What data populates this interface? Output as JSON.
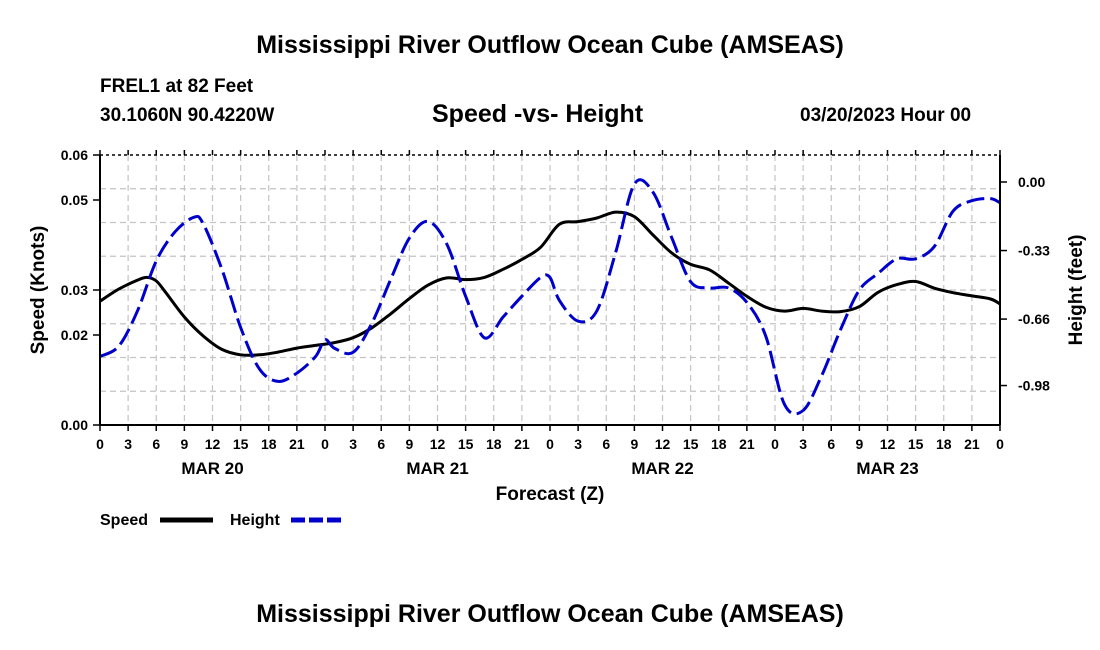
{
  "header": {
    "title": "Mississippi River Outflow Ocean Cube (AMSEAS)",
    "station": "FREL1 at 82 Feet",
    "coords": "30.1060N  90.4220W",
    "subtitle": "Speed -vs- Height",
    "datetime": "03/20/2023 Hour 00"
  },
  "footer": {
    "title": "Mississippi River Outflow Ocean Cube (AMSEAS)"
  },
  "chart_data": {
    "type": "line",
    "xlabel": "Forecast (Z)",
    "x_unit": "hours from 03/20/2023 00Z",
    "xlim": [
      0,
      96
    ],
    "x_tick_step": 3,
    "x_tick_labels": [
      "0",
      "3",
      "6",
      "9",
      "12",
      "15",
      "18",
      "21",
      "0",
      "3",
      "6",
      "9",
      "12",
      "15",
      "18",
      "21",
      "0",
      "3",
      "6",
      "9",
      "12",
      "15",
      "18",
      "21",
      "0",
      "3",
      "6",
      "9",
      "12",
      "15",
      "18",
      "21",
      "0"
    ],
    "date_labels": [
      {
        "label": "MAR 20",
        "hour": 12
      },
      {
        "label": "MAR 21",
        "hour": 36
      },
      {
        "label": "MAR 22",
        "hour": 60
      },
      {
        "label": "MAR 23",
        "hour": 84
      }
    ],
    "left_axis": {
      "label": "Speed (Knots)",
      "ylim": [
        0,
        0.06
      ],
      "ticks": [
        0.0,
        0.02,
        0.03,
        0.05,
        0.06
      ],
      "tick_labels": [
        "0.00",
        "0.02",
        "0.03",
        "0.05",
        "0.06"
      ]
    },
    "right_axis": {
      "label": "Height (feet)",
      "ylim": [
        -1.17,
        0.13
      ],
      "ticks": [
        0.0,
        -0.33,
        -0.66,
        -0.98
      ],
      "tick_labels": [
        "0.00",
        "-0.33",
        "-0.66",
        "-0.98"
      ]
    },
    "legend": [
      {
        "name": "Speed",
        "color": "#000000",
        "style": "solid"
      },
      {
        "name": "Height",
        "color": "#0000cc",
        "style": "dashed"
      }
    ],
    "series": [
      {
        "name": "Speed",
        "axis": "left",
        "color": "#000000",
        "x": [
          0,
          2,
          4,
          5,
          6,
          7,
          9,
          11,
          13,
          15,
          17,
          19,
          21,
          23,
          25,
          27,
          29,
          31,
          33,
          35,
          37,
          39,
          41,
          43,
          45,
          47,
          49,
          51,
          53,
          55,
          57,
          59,
          61,
          63,
          65,
          67,
          69,
          71,
          73,
          75,
          77,
          79,
          81,
          83,
          85,
          87,
          89,
          91,
          93,
          95,
          96
        ],
        "y": [
          0.0275,
          0.0302,
          0.0322,
          0.0328,
          0.032,
          0.0295,
          0.024,
          0.0198,
          0.0168,
          0.0156,
          0.0156,
          0.0162,
          0.0171,
          0.0177,
          0.0183,
          0.0194,
          0.0216,
          0.0247,
          0.0281,
          0.0311,
          0.0327,
          0.0323,
          0.0328,
          0.0346,
          0.0368,
          0.0395,
          0.0446,
          0.0452,
          0.046,
          0.0473,
          0.0463,
          0.0422,
          0.0382,
          0.0357,
          0.0345,
          0.0316,
          0.0286,
          0.0262,
          0.0253,
          0.0259,
          0.0253,
          0.0252,
          0.0263,
          0.0295,
          0.0312,
          0.0319,
          0.0304,
          0.0294,
          0.0287,
          0.028,
          0.0269
        ]
      },
      {
        "name": "Height",
        "axis": "right",
        "color": "#0000cc",
        "x": [
          0,
          2,
          4,
          6,
          8,
          10,
          11,
          13,
          15,
          17,
          19,
          21,
          23,
          24,
          25,
          27,
          29,
          31,
          33,
          35,
          37,
          39,
          41,
          43,
          45,
          47,
          48,
          49,
          51,
          53,
          55,
          57,
          59,
          61,
          63,
          65,
          67,
          69,
          71,
          73,
          75,
          77,
          79,
          81,
          83,
          85,
          87,
          89,
          91,
          93,
          95,
          96
        ],
        "y": [
          -0.84,
          -0.79,
          -0.62,
          -0.38,
          -0.24,
          -0.17,
          -0.2,
          -0.42,
          -0.7,
          -0.9,
          -0.96,
          -0.92,
          -0.84,
          -0.76,
          -0.8,
          -0.82,
          -0.68,
          -0.47,
          -0.27,
          -0.19,
          -0.3,
          -0.55,
          -0.75,
          -0.65,
          -0.55,
          -0.46,
          -0.46,
          -0.57,
          -0.67,
          -0.62,
          -0.34,
          -0.01,
          -0.05,
          -0.27,
          -0.48,
          -0.51,
          -0.51,
          -0.58,
          -0.74,
          -1.07,
          -1.1,
          -0.93,
          -0.71,
          -0.52,
          -0.44,
          -0.37,
          -0.37,
          -0.31,
          -0.14,
          -0.09,
          -0.08,
          -0.1
        ]
      }
    ]
  }
}
